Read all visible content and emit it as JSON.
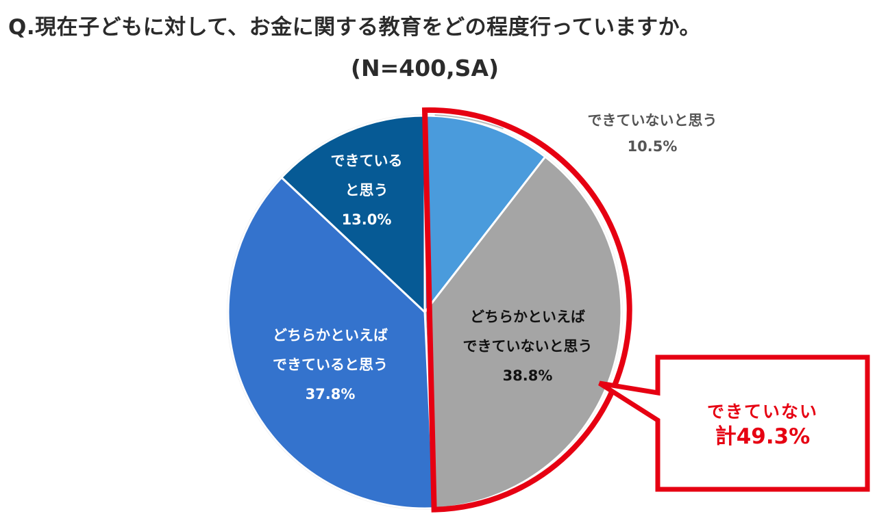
{
  "title": {
    "line1": "Q.現在子どもに対して、お金に関する教育をどの程度行っていますか。",
    "line2": "(N=400,SA)"
  },
  "chart_data": {
    "type": "pie",
    "start_angle_deg": 0,
    "direction": "clockwise",
    "slices": [
      {
        "name": "できていないと思う",
        "label_lines": [
          "できていないと思う",
          "10.5%"
        ],
        "value": 10.5,
        "color": "#4a9bdc",
        "label_color": "#555555",
        "label_position": "outside-top-right"
      },
      {
        "name": "どちらかといえばできていないと思う",
        "label_lines": [
          "どちらかといえば",
          "できていないと思う",
          "38.8%"
        ],
        "value": 38.8,
        "color": "#a5a5a5",
        "label_color": "#111111",
        "label_position": "inside"
      },
      {
        "name": "どちらかといえばできていると思う",
        "label_lines": [
          "どちらかといえば",
          "できていると思う",
          "37.8%"
        ],
        "value": 37.8,
        "color": "#3473cd",
        "label_color": "#ffffff",
        "label_position": "inside"
      },
      {
        "name": "できていると思う",
        "label_lines": [
          "できている",
          "と思う",
          "13.0%"
        ],
        "value": 13.0,
        "color": "#065a95",
        "label_color": "#ffffff",
        "label_position": "inside"
      }
    ],
    "highlight": {
      "slices": [
        "できていないと思う",
        "どちらかといえばできていないと思う"
      ],
      "color": "#e60012"
    },
    "callout": {
      "line1": "できていない",
      "line2": "計49.3%",
      "color": "#e60012"
    }
  }
}
